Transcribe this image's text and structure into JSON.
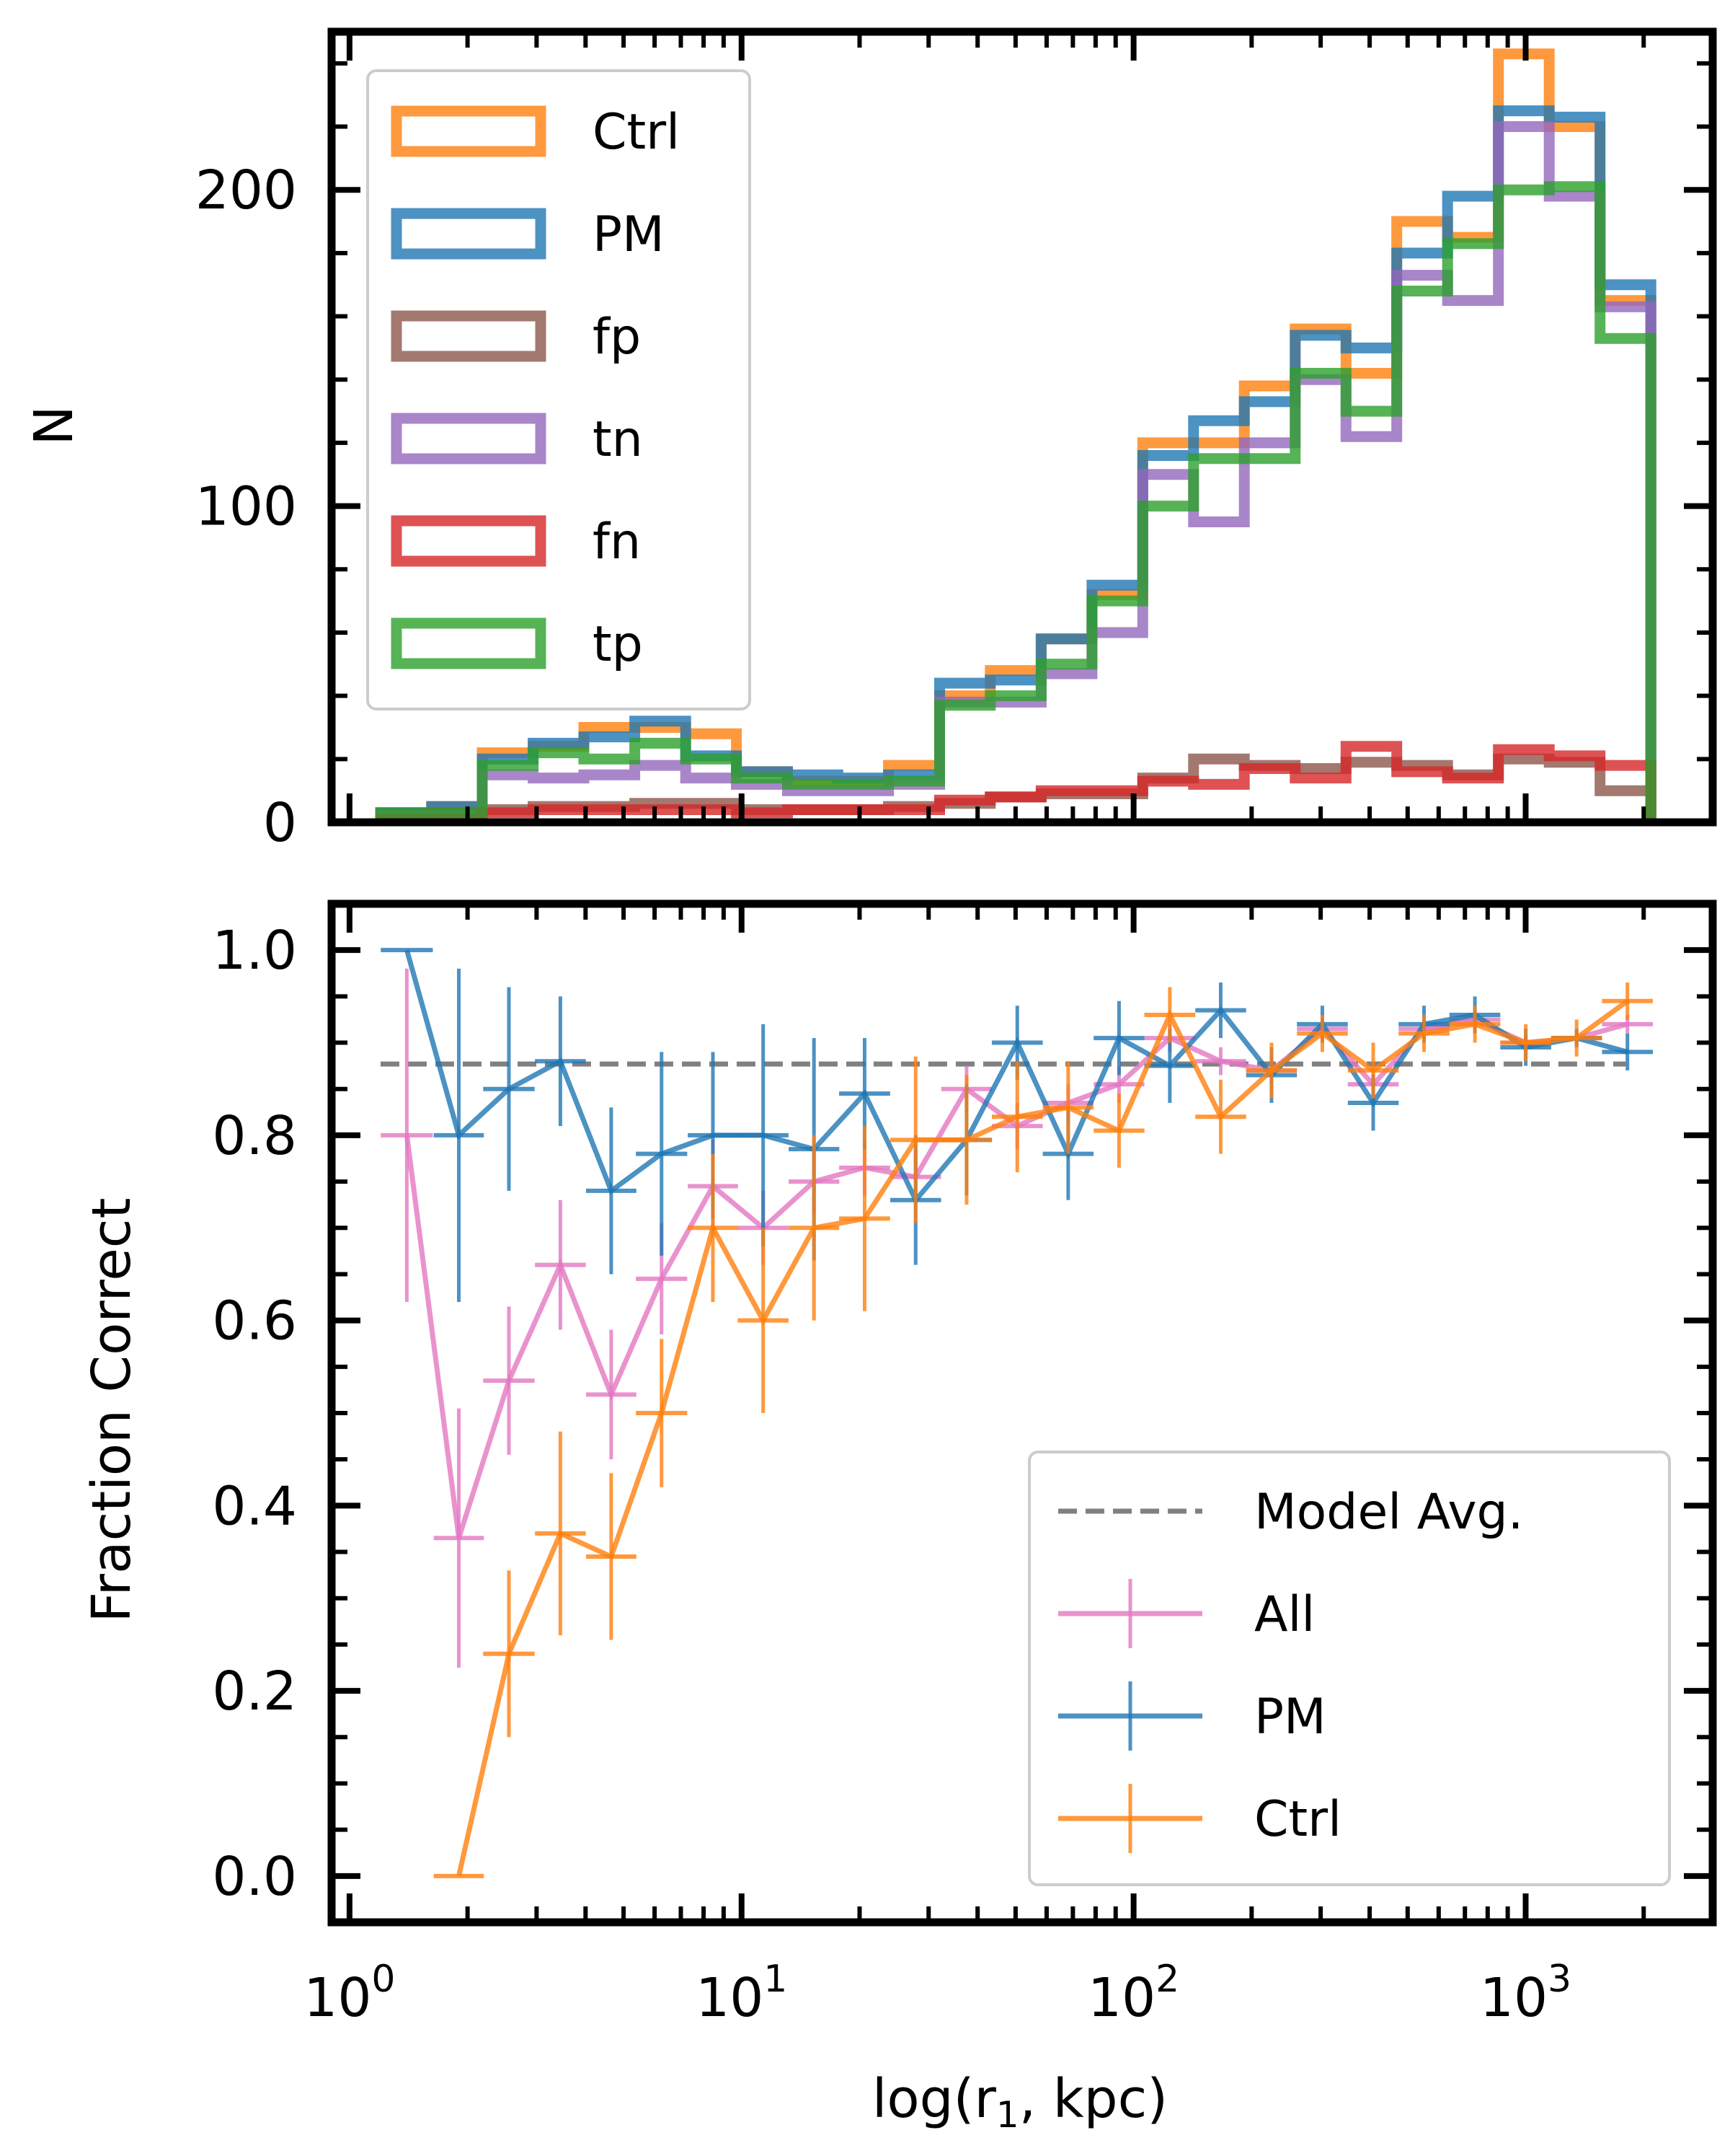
{
  "colors": {
    "ctrl": "#ff7f0e",
    "pm": "#1f77b4",
    "fp": "#8c564b",
    "tn": "#9467bd",
    "fn": "#d62728",
    "tp": "#2ca02c",
    "all": "#e377c2",
    "model_avg": "#808080"
  },
  "chart_data": [
    {
      "type": "histogram",
      "name": "top",
      "ylabel": "N",
      "xscale": "log",
      "xlim": [
        0.9,
        3000
      ],
      "ylim": [
        0,
        250
      ],
      "yticks": [
        0,
        100,
        200
      ],
      "ytick_labels": [
        "0",
        "100",
        "200"
      ],
      "legend_position": "upper-left",
      "bin_edges": [
        1.2,
        1.62,
        2.18,
        2.94,
        3.96,
        5.34,
        7.2,
        9.7,
        13.1,
        17.6,
        23.7,
        32.0,
        43.1,
        58.1,
        78.3,
        105.5,
        142.2,
        191.6,
        258.3,
        348.1,
        469.1,
        632.3,
        852.1,
        1148.4,
        1547.7,
        2085.9
      ],
      "series": [
        {
          "name": "Ctrl",
          "color_key": "ctrl",
          "values": [
            3,
            5,
            22,
            24,
            30,
            30,
            28,
            16,
            13,
            13,
            18,
            40,
            48,
            58,
            72,
            120,
            120,
            138,
            156,
            142,
            190,
            185,
            243,
            220,
            165
          ]
        },
        {
          "name": "PM",
          "color_key": "pm",
          "values": [
            3,
            5,
            20,
            25,
            27,
            32,
            21,
            16,
            15,
            14,
            15,
            44,
            45,
            58,
            75,
            116,
            127,
            133,
            154,
            150,
            180,
            198,
            225,
            223,
            170
          ]
        },
        {
          "name": "fp",
          "color_key": "fp",
          "values": [
            1,
            3,
            4,
            5,
            5,
            6,
            6,
            4,
            4,
            4,
            5,
            6,
            8,
            9,
            9,
            14,
            20,
            18,
            17,
            19,
            18,
            15,
            20,
            19,
            10
          ]
        },
        {
          "name": "tn",
          "color_key": "tn",
          "values": [
            2,
            2,
            15,
            14,
            15,
            18,
            14,
            12,
            10,
            10,
            12,
            38,
            38,
            47,
            60,
            110,
            95,
            120,
            140,
            122,
            173,
            165,
            220,
            198,
            163
          ]
        },
        {
          "name": "fn",
          "color_key": "fn",
          "values": [
            1,
            1,
            3,
            4,
            4,
            4,
            4,
            3,
            4,
            4,
            4,
            7,
            8,
            10,
            10,
            13,
            12,
            17,
            14,
            24,
            16,
            14,
            23,
            21,
            18
          ]
        },
        {
          "name": "tp",
          "color_key": "tp",
          "values": [
            3,
            3,
            18,
            22,
            20,
            25,
            20,
            14,
            12,
            12,
            13,
            37,
            40,
            50,
            70,
            100,
            115,
            115,
            142,
            130,
            168,
            183,
            200,
            201,
            153
          ]
        }
      ]
    },
    {
      "type": "line",
      "name": "bottom",
      "ylabel": "Fraction Correct",
      "xlabel_prefix": "log(r",
      "xlabel_sub": "1",
      "xlabel_suffix": ", kpc)",
      "xscale": "log",
      "xlim": [
        0.9,
        3000
      ],
      "ylim": [
        -0.05,
        1.05
      ],
      "xticks": [
        1,
        10,
        100,
        1000
      ],
      "xtick_labels": [
        {
          "base": "10",
          "exp": "0"
        },
        {
          "base": "10",
          "exp": "1"
        },
        {
          "base": "10",
          "exp": "2"
        },
        {
          "base": "10",
          "exp": "3"
        }
      ],
      "yticks": [
        0.0,
        0.2,
        0.4,
        0.6,
        0.8,
        1.0
      ],
      "ytick_labels": [
        "0.0",
        "0.2",
        "0.4",
        "0.6",
        "0.8",
        "1.0"
      ],
      "legend_position": "lower-right",
      "reference_line": {
        "name": "Model Avg.",
        "y": 0.877,
        "color_key": "model_avg",
        "style": "dashed",
        "x_range": [
          1.2,
          1800
        ]
      },
      "x": [
        1.4,
        1.9,
        2.55,
        3.45,
        4.65,
        6.25,
        8.45,
        11.35,
        15.3,
        20.6,
        27.8,
        37.5,
        50.5,
        68.1,
        91.8,
        123.7,
        166.8,
        224.8,
        303.0,
        408.5,
        550.6,
        742.3,
        1000.5,
        1348.9,
        1818.1
      ],
      "series": [
        {
          "name": "All",
          "color_key": "all",
          "y": [
            0.8,
            0.365,
            0.535,
            0.66,
            0.52,
            0.645,
            0.745,
            0.7,
            0.75,
            0.765,
            0.755,
            0.85,
            0.81,
            0.835,
            0.855,
            0.905,
            0.88,
            0.87,
            0.915,
            0.855,
            0.915,
            0.925,
            0.9,
            0.905,
            0.92
          ],
          "yerr": [
            0.18,
            0.14,
            0.08,
            0.07,
            0.07,
            0.06,
            0.05,
            0.04,
            0.035,
            0.03,
            0.03,
            0.025,
            0.025,
            0.02,
            0.02,
            0.015,
            0.015,
            0.015,
            0.012,
            0.012,
            0.01,
            0.01,
            0.008,
            0.008,
            0.01
          ]
        },
        {
          "name": "PM",
          "color_key": "pm",
          "y": [
            1.0,
            0.8,
            0.85,
            0.88,
            0.74,
            0.78,
            0.8,
            0.8,
            0.785,
            0.845,
            0.73,
            0.795,
            0.9,
            0.78,
            0.905,
            0.875,
            0.935,
            0.865,
            0.92,
            0.835,
            0.92,
            0.93,
            0.895,
            0.905,
            0.89
          ],
          "yerr": [
            0.0,
            0.18,
            0.11,
            0.07,
            0.09,
            0.11,
            0.09,
            0.12,
            0.12,
            0.06,
            0.07,
            0.06,
            0.04,
            0.05,
            0.04,
            0.04,
            0.03,
            0.03,
            0.02,
            0.03,
            0.02,
            0.02,
            0.02,
            0.01,
            0.02
          ]
        },
        {
          "name": "Ctrl",
          "color_key": "ctrl",
          "y": [
            null,
            0.0,
            0.24,
            0.37,
            0.345,
            0.5,
            0.7,
            0.6,
            0.7,
            0.71,
            0.795,
            0.795,
            0.82,
            0.83,
            0.805,
            0.93,
            0.82,
            0.87,
            0.91,
            0.87,
            0.91,
            0.92,
            0.9,
            0.905,
            0.945
          ],
          "yerr": [
            0.0,
            0.0,
            0.09,
            0.11,
            0.09,
            0.08,
            0.08,
            0.1,
            0.1,
            0.1,
            0.09,
            0.07,
            0.06,
            0.05,
            0.04,
            0.03,
            0.04,
            0.03,
            0.02,
            0.03,
            0.02,
            0.02,
            0.02,
            0.02,
            0.02
          ]
        }
      ]
    }
  ]
}
